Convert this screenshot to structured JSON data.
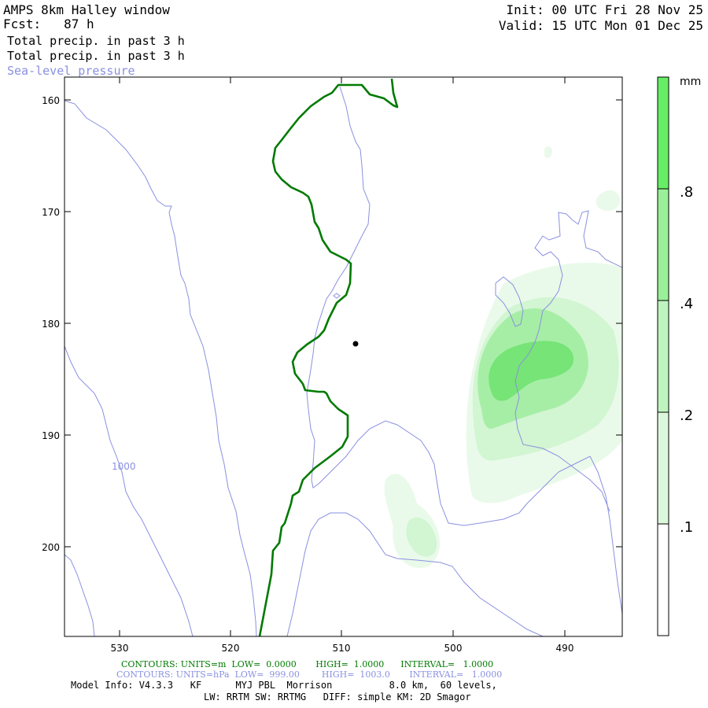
{
  "header": {
    "title": "AMPS 8km Halley window",
    "fcst": "Fcst:   87 h",
    "field1": "Total precip. in past 3 h",
    "field2": "Total precip. in past 3 h",
    "field3": "Sea-level pressure",
    "init": "Init: 00 UTC Fri 28 Nov 25",
    "valid": "Valid: 15 UTC Mon 01 Dec 25"
  },
  "axes": {
    "y_ticks": [
      "160",
      "170",
      "180",
      "190",
      "200"
    ],
    "x_ticks": [
      "530",
      "520",
      "510",
      "500",
      "490"
    ]
  },
  "contour_label": "1000",
  "colorbar": {
    "unit": "mm",
    "labels": [
      ".8",
      ".4",
      ".2",
      ".1"
    ],
    "colors": [
      "#66ee66",
      "#99f099",
      "#bff4bf",
      "#dcf8dc",
      "#ffffff"
    ]
  },
  "footer": {
    "line1": "CONTOURS: UNITS=m  LOW=  0.0000       HIGH=  1.0000      INTERVAL=   1.0000",
    "line2": "CONTOURS: UNITS=hPa  LOW=  999.00        HIGH=  1003.0       INTERVAL=   1.0000",
    "line3": "Model Info: V4.3.3   KF      MYJ PBL  Morrison          8.0 km,  60 levels,",
    "line4": "LW: RRTM SW: RRTMG   DIFF: simple KM: 2D Smagor"
  },
  "colors": {
    "pressure_contour": "#8a90e0",
    "coastline": "#007a00"
  }
}
